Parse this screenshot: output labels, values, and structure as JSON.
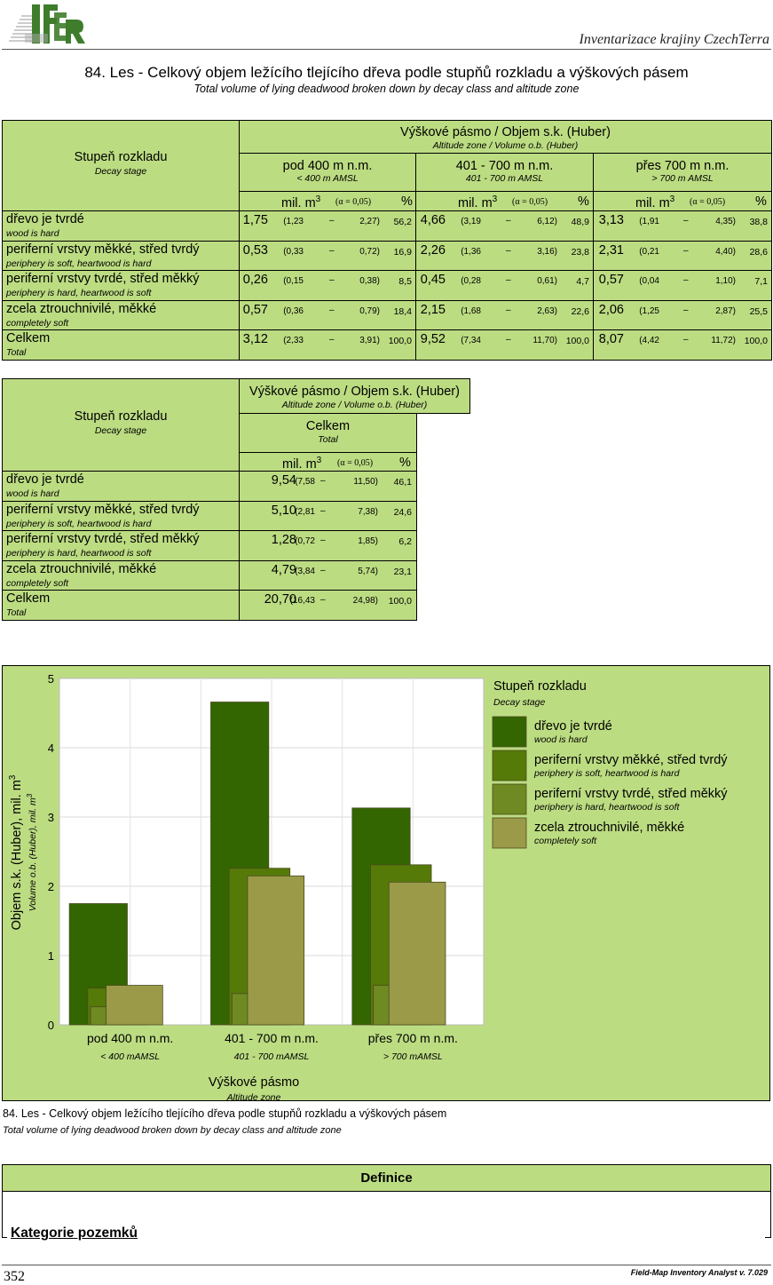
{
  "header": {
    "logo_text": "IFER",
    "publication": "Inventarizace krajiny CzechTerra"
  },
  "title": {
    "cz": "84. Les - Celkový objem ležícího tlejícího dřeva  podle stupňů rozkladu a výškových pásem",
    "en": "Total volume of lying deadwood broken down by decay class and altitude zone"
  },
  "table1": {
    "group_cz": "Výškové pásmo / Objem s.k. (Huber)",
    "group_en": "Altitude zone / Volume o.b. (Huber)",
    "stub_cz": "Stupeň rozkladu",
    "stub_en": "Decay stage",
    "zones": [
      {
        "cz": "pod 400 m n.m.",
        "en": "< 400 m AMSL"
      },
      {
        "cz": "401 - 700 m n.m.",
        "en": "401 - 700 m AMSL"
      },
      {
        "cz": "přes 700 m n.m.",
        "en": "> 700 m AMSL"
      }
    ],
    "unit": "mil. m",
    "unit_sup": "3",
    "alpha": "(α = 0,05)",
    "pct": "%",
    "rows": [
      {
        "cz": "dřevo je tvrdé",
        "en": "wood is hard",
        "cells": [
          [
            "1,75",
            "(1,23",
            "–",
            "2,27)",
            "56,2"
          ],
          [
            "4,66",
            "(3,19",
            "–",
            "6,12)",
            "48,9"
          ],
          [
            "3,13",
            "(1,91",
            "–",
            "4,35)",
            "38,8"
          ]
        ]
      },
      {
        "cz": "periferní vrstvy měkké, střed tvrdý",
        "en": "periphery is soft, heartwood is hard",
        "cells": [
          [
            "0,53",
            "(0,33",
            "–",
            "0,72)",
            "16,9"
          ],
          [
            "2,26",
            "(1,36",
            "–",
            "3,16)",
            "23,8"
          ],
          [
            "2,31",
            "(0,21",
            "–",
            "4,40)",
            "28,6"
          ]
        ]
      },
      {
        "cz": "periferní vrstvy tvrdé, střed měkký",
        "en": "periphery is hard, heartwood is soft",
        "cells": [
          [
            "0,26",
            "(0,15",
            "–",
            "0,38)",
            "8,5"
          ],
          [
            "0,45",
            "(0,28",
            "–",
            "0,61)",
            "4,7"
          ],
          [
            "0,57",
            "(0,04",
            "–",
            "1,10)",
            "7,1"
          ]
        ]
      },
      {
        "cz": "zcela ztrouchnivilé, měkké",
        "en": "completely soft",
        "cells": [
          [
            "0,57",
            "(0,36",
            "–",
            "0,79)",
            "18,4"
          ],
          [
            "2,15",
            "(1,68",
            "–",
            "2,63)",
            "22,6"
          ],
          [
            "2,06",
            "(1,25",
            "–",
            "2,87)",
            "25,5"
          ]
        ]
      },
      {
        "cz": "Celkem",
        "en": "Total",
        "cells": [
          [
            "3,12",
            "(2,33",
            "–",
            "3,91)",
            "100,0"
          ],
          [
            "9,52",
            "(7,34",
            "–",
            "11,70)",
            "100,0"
          ],
          [
            "8,07",
            "(4,42",
            "–",
            "11,72)",
            "100,0"
          ]
        ]
      }
    ]
  },
  "table2": {
    "group_cz": "Výškové pásmo / Objem s.k. (Huber)",
    "group_en": "Altitude zone / Volume o.b. (Huber)",
    "stub_cz": "Stupeň rozkladu",
    "stub_en": "Decay stage",
    "zone_cz": "Celkem",
    "zone_en": "Total",
    "unit": "mil. m",
    "unit_sup": "3",
    "alpha": "(α = 0,05)",
    "pct": "%",
    "rows": [
      {
        "cz": "dřevo je tvrdé",
        "en": "wood is hard",
        "cells": [
          "9,54",
          "(7,58",
          "–",
          "11,50)",
          "46,1"
        ]
      },
      {
        "cz": "periferní vrstvy měkké, střed tvrdý",
        "en": "periphery is soft, heartwood is hard",
        "cells": [
          "5,10",
          "(2,81",
          "–",
          "7,38)",
          "24,6"
        ]
      },
      {
        "cz": "periferní vrstvy tvrdé, střed měkký",
        "en": "periphery is hard, heartwood is soft",
        "cells": [
          "1,28",
          "(0,72",
          "–",
          "1,85)",
          "6,2"
        ]
      },
      {
        "cz": "zcela ztrouchnivilé, měkké",
        "en": "completely soft",
        "cells": [
          "4,79",
          "(3,84",
          "–",
          "5,74)",
          "23,1"
        ]
      },
      {
        "cz": "Celkem",
        "en": "Total",
        "cells": [
          "20,70",
          "(16,43",
          "–",
          "24,98)",
          "100,0"
        ]
      }
    ]
  },
  "chart_data": {
    "type": "bar",
    "categories": [
      "pod 400 m n.m.",
      "401 - 700 m n.m.",
      "přes 700 m n.m."
    ],
    "categories_en": [
      "< 400 mAMSL",
      "401 - 700 mAMSL",
      "> 700 mAMSL"
    ],
    "series": [
      {
        "name": "dřevo je tvrdé",
        "name_en": "wood is hard",
        "values": [
          1.75,
          4.66,
          3.13
        ],
        "color": "#336600"
      },
      {
        "name": "periferní vrstvy měkké, střed tvrdý",
        "name_en": "periphery is soft, heartwood is hard",
        "values": [
          0.53,
          2.26,
          2.31
        ],
        "color": "#557a08"
      },
      {
        "name": "periferní vrstvy tvrdé, střed měkký",
        "name_en": "periphery is hard, heartwood is soft",
        "values": [
          0.26,
          0.45,
          0.57
        ],
        "color": "#6f8a22"
      },
      {
        "name": "zcela ztrouchnivilé, měkké",
        "name_en": "completely soft",
        "values": [
          0.57,
          2.15,
          2.06
        ],
        "color": "#9a9a48"
      }
    ],
    "ylim": [
      0,
      5
    ],
    "yticks": [
      "0",
      "1",
      "2",
      "3",
      "4",
      "5"
    ],
    "ylabel": "Objem s.k. (Huber), mil. m",
    "ylabel_sup": "3",
    "ylabel_en": "Volume o.b. (Huber), mil. m",
    "ylabel_en_sup": "3",
    "xlabel": "Výškové pásmo",
    "xlabel_en": "Altitude zone",
    "legend_title": "Stupeň rozkladu",
    "legend_title_en": "Decay stage",
    "legend_placement": "right",
    "grid": true
  },
  "caption": {
    "cz": "84. Les - Celkový objem ležícího tlejícího dřeva  podle stupňů rozkladu a výškových pásem",
    "en": "Total volume of lying deadwood broken down by decay class and altitude zone"
  },
  "definice": {
    "title": "Definice",
    "section": "Kategorie pozemků"
  },
  "footer": {
    "page": "352",
    "software": "Field-Map Inventory Analyst v. 7.029"
  },
  "colors": {
    "table_fill": "#bcdc82",
    "logo_green": "#3f7d2c"
  }
}
